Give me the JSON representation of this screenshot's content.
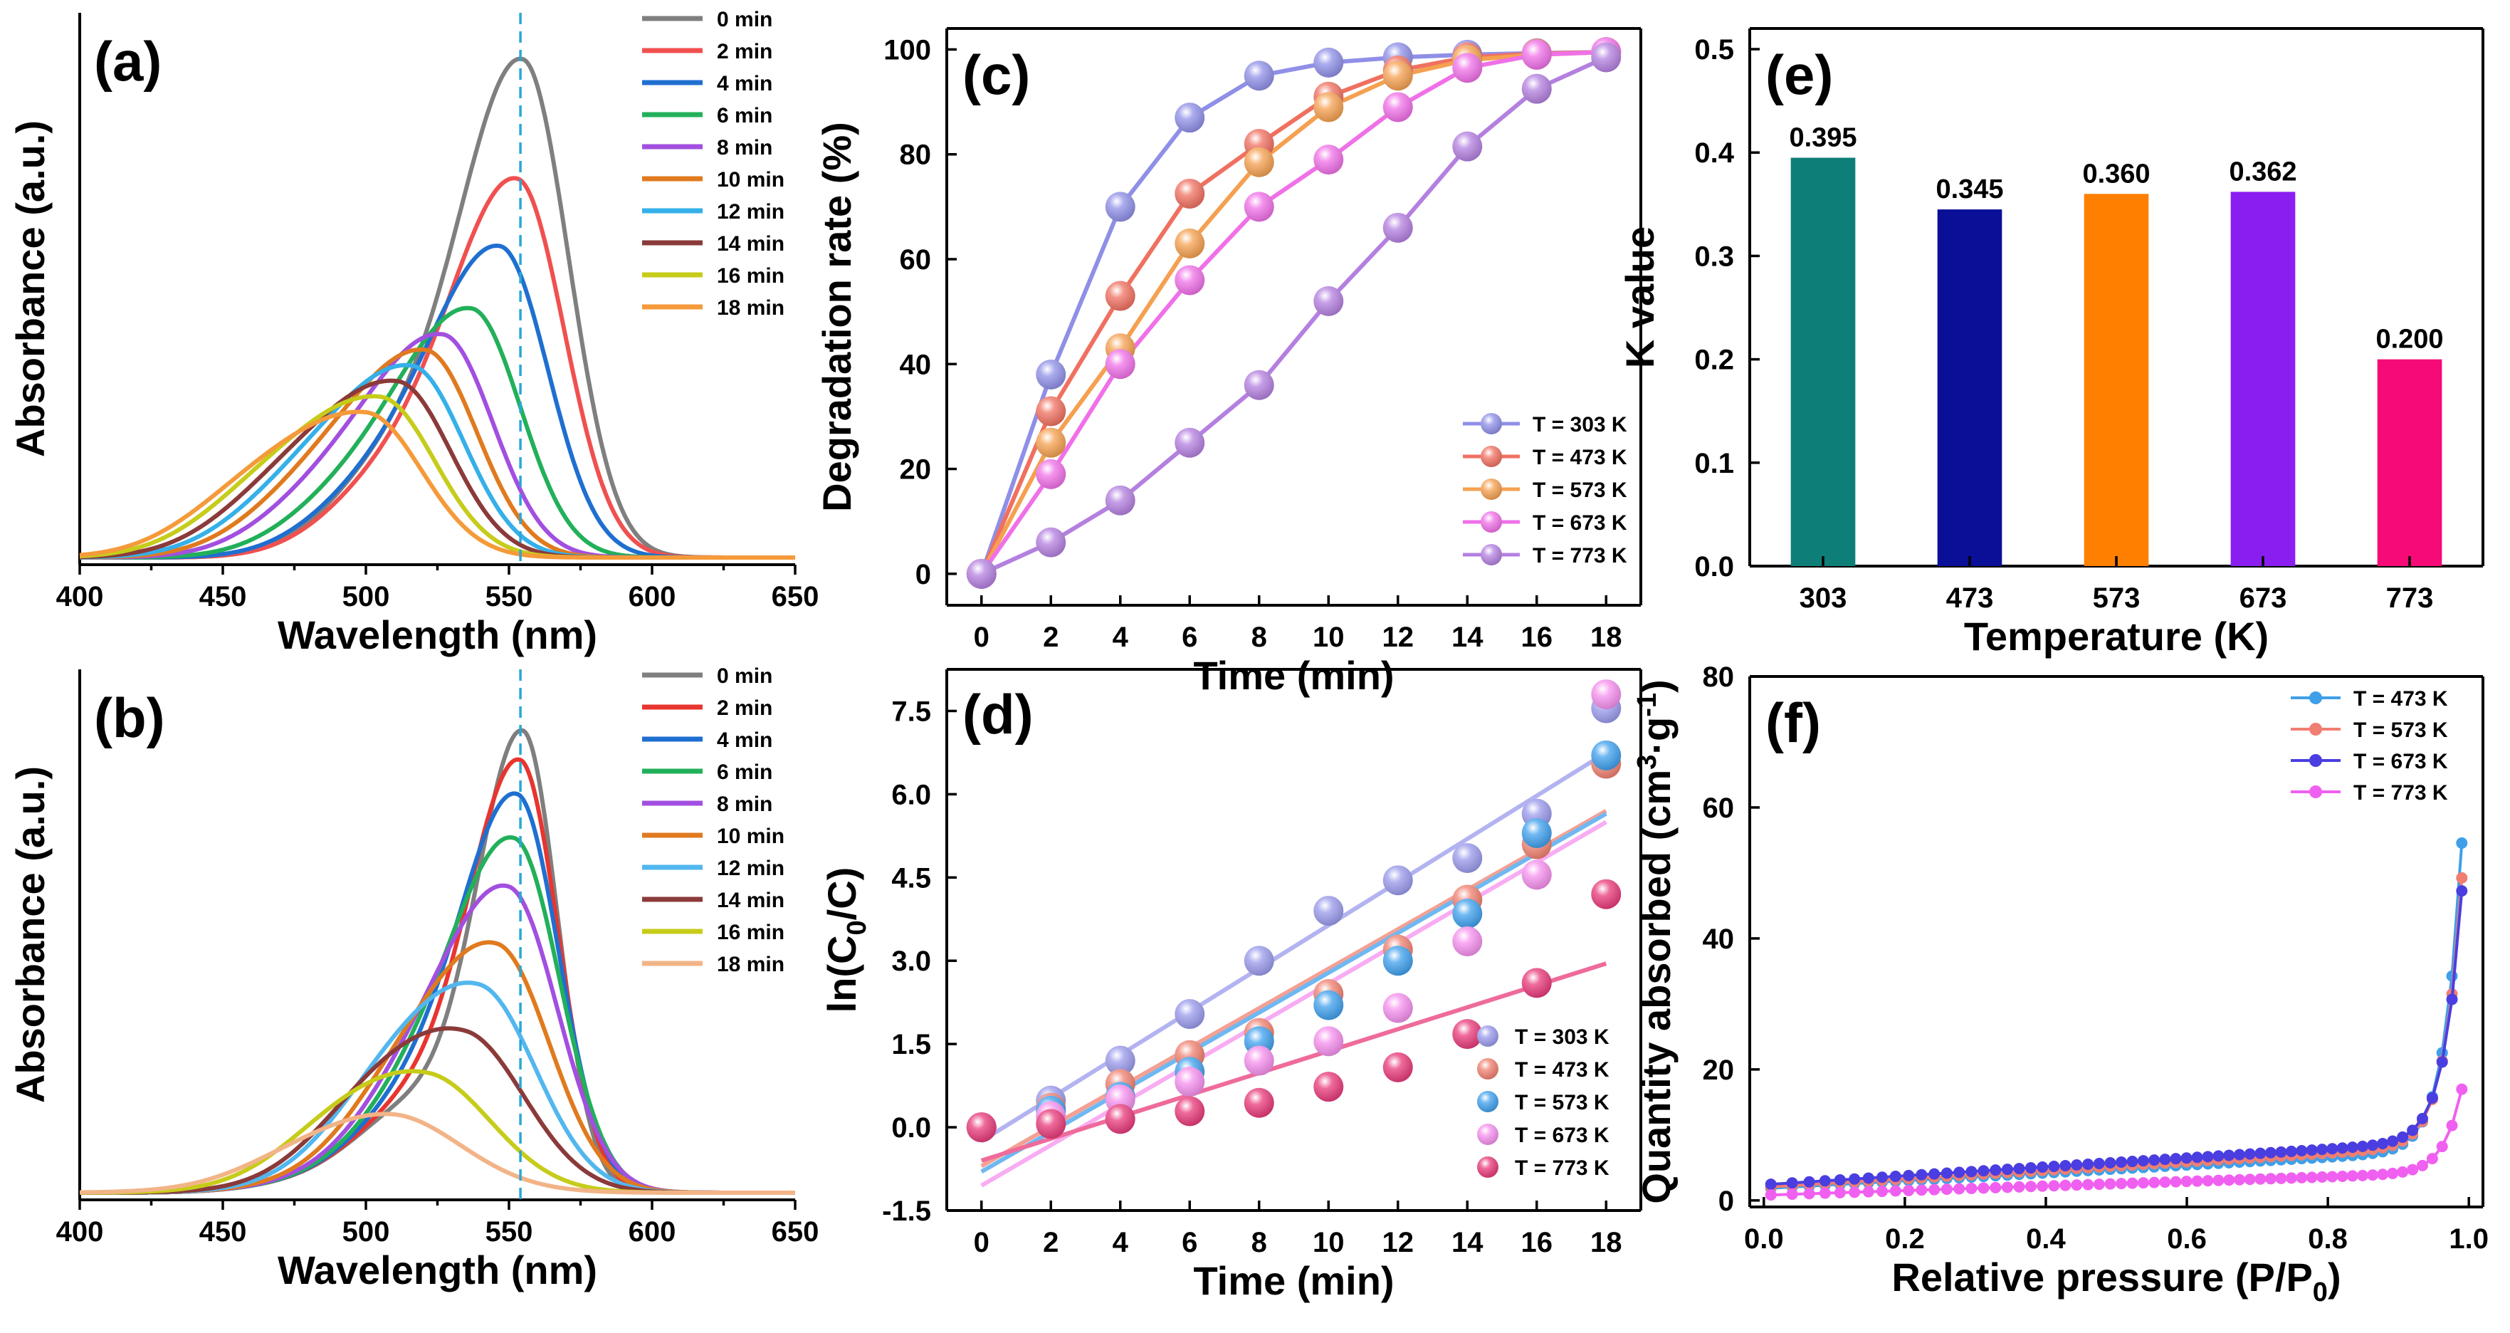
{
  "chart_data": [
    {
      "id": "a",
      "panel_label": "(a)",
      "type": "line",
      "xlabel": "Wavelength (nm)",
      "ylabel": "Absorbance (a.u.)",
      "xlim": [
        400,
        650
      ],
      "x_ticks": [
        "400",
        "450",
        "500",
        "550",
        "600",
        "650"
      ],
      "reference_line_x": 554,
      "legend_position": "top-right",
      "series": [
        {
          "name": "0 min",
          "color": "#7f7f7f",
          "peak_nm": 555,
          "peak_height": 0.96
        },
        {
          "name": "2 min",
          "color": "#f05050",
          "peak_nm": 553,
          "peak_height": 0.73
        },
        {
          "name": "4 min",
          "color": "#1f6fd0",
          "peak_nm": 547,
          "peak_height": 0.6
        },
        {
          "name": "6 min",
          "color": "#22b05a",
          "peak_nm": 537,
          "peak_height": 0.48
        },
        {
          "name": "8 min",
          "color": "#a24fe0",
          "peak_nm": 527,
          "peak_height": 0.43
        },
        {
          "name": "10 min",
          "color": "#e07a1f",
          "peak_nm": 521,
          "peak_height": 0.4
        },
        {
          "name": "12 min",
          "color": "#35b0e8",
          "peak_nm": 516,
          "peak_height": 0.37
        },
        {
          "name": "14 min",
          "color": "#8b3a3a",
          "peak_nm": 511,
          "peak_height": 0.34
        },
        {
          "name": "16 min",
          "color": "#c6cc1a",
          "peak_nm": 505,
          "peak_height": 0.31
        },
        {
          "name": "18 min",
          "color": "#f59a3a",
          "peak_nm": 500,
          "peak_height": 0.28
        }
      ]
    },
    {
      "id": "b",
      "panel_label": "(b)",
      "type": "line",
      "xlabel": "Wavelength (nm)",
      "ylabel": "Absorbance (a.u.)",
      "xlim": [
        400,
        650
      ],
      "x_ticks": [
        "400",
        "450",
        "500",
        "550",
        "600",
        "650"
      ],
      "reference_line_x": 554,
      "legend_position": "top-right",
      "series": [
        {
          "name": "0 min",
          "color": "#7f7f7f",
          "peak_nm": 555,
          "peak_height": 0.92
        },
        {
          "name": "2 min",
          "color": "#e8352f",
          "peak_nm": 554,
          "peak_height": 0.86
        },
        {
          "name": "4 min",
          "color": "#1f6fd0",
          "peak_nm": 553,
          "peak_height": 0.79
        },
        {
          "name": "6 min",
          "color": "#22b05a",
          "peak_nm": 552,
          "peak_height": 0.7
        },
        {
          "name": "8 min",
          "color": "#a24fe0",
          "peak_nm": 550,
          "peak_height": 0.6
        },
        {
          "name": "10 min",
          "color": "#e07a1f",
          "peak_nm": 546,
          "peak_height": 0.48
        },
        {
          "name": "12 min",
          "color": "#52b7ee",
          "peak_nm": 540,
          "peak_height": 0.39
        },
        {
          "name": "14 min",
          "color": "#8b3a3a",
          "peak_nm": 535,
          "peak_height": 0.29
        },
        {
          "name": "16 min",
          "color": "#c6cc1a",
          "peak_nm": 522,
          "peak_height": 0.19
        },
        {
          "name": "18 min",
          "color": "#f2b487",
          "peak_nm": 508,
          "peak_height": 0.1
        }
      ]
    },
    {
      "id": "c",
      "panel_label": "(c)",
      "type": "line",
      "xlabel": "Time (min)",
      "ylabel": "Degradation rate (%)",
      "xlim": [
        -1,
        19
      ],
      "ylim": [
        -6,
        104
      ],
      "x_ticks": [
        0,
        2,
        4,
        6,
        8,
        10,
        12,
        14,
        16,
        18
      ],
      "y_ticks": [
        0,
        20,
        40,
        60,
        80,
        100
      ],
      "x": [
        0,
        2,
        4,
        6,
        8,
        10,
        12,
        14,
        16,
        18
      ],
      "legend_position": "bottom-right",
      "series": [
        {
          "name": "T = 303 K",
          "color": "#8f8fe8",
          "values": [
            0,
            38,
            70,
            87,
            95,
            97.5,
            98.5,
            99,
            99.3,
            99.5
          ]
        },
        {
          "name": "T = 473 K",
          "color": "#f07060",
          "values": [
            0,
            31,
            53,
            72.5,
            82,
            91,
            96,
            98.5,
            99.2,
            99.5
          ]
        },
        {
          "name": "T = 573 K",
          "color": "#f5a050",
          "values": [
            0,
            25,
            43,
            63,
            78.5,
            89,
            95,
            98,
            99,
            99.5
          ]
        },
        {
          "name": "T = 673 K",
          "color": "#f070e8",
          "values": [
            0,
            19,
            40,
            56,
            70,
            79,
            89,
            96.5,
            99,
            99.5
          ]
        },
        {
          "name": "T = 773 K",
          "color": "#b480e0",
          "values": [
            0,
            6,
            14,
            25,
            36,
            52,
            66,
            81.5,
            92.5,
            98.5
          ]
        }
      ]
    },
    {
      "id": "d",
      "panel_label": "(d)",
      "type": "scatter",
      "xlabel": "Time (min)",
      "ylabel": "ln(C0/C)",
      "ylabel_parts": {
        "pre": "ln(C",
        "sub": "0",
        "post": "/C)"
      },
      "xlim": [
        -1,
        19
      ],
      "ylim": [
        -1.5,
        8.25
      ],
      "x_ticks": [
        0,
        2,
        4,
        6,
        8,
        10,
        12,
        14,
        16,
        18
      ],
      "y_ticks": [
        "-1.5",
        "0.0",
        "1.5",
        "3.0",
        "4.5",
        "6.0",
        "7.5"
      ],
      "x": [
        0,
        2,
        4,
        6,
        8,
        10,
        12,
        14,
        16,
        18
      ],
      "legend_position": "bottom-right",
      "series": [
        {
          "name": "T = 303 K",
          "color": "#9a9aec",
          "values": [
            0,
            0.48,
            1.2,
            2.04,
            3.0,
            3.9,
            4.45,
            4.85,
            5.65,
            7.55
          ],
          "fit": [
            -0.25,
            6.75
          ]
        },
        {
          "name": "T = 473 K",
          "color": "#f08070",
          "values": [
            0,
            0.35,
            0.78,
            1.3,
            1.7,
            2.4,
            3.2,
            4.1,
            5.1,
            6.55
          ],
          "fit": [
            -0.7,
            5.7
          ]
        },
        {
          "name": "T = 573 K",
          "color": "#3fa0ee",
          "values": [
            0,
            0.3,
            0.55,
            1.0,
            1.55,
            2.2,
            3.0,
            3.85,
            5.3,
            6.7
          ],
          "fit": [
            -0.8,
            5.65
          ]
        },
        {
          "name": "T = 673 K",
          "color": "#f590ee",
          "values": [
            0,
            0.2,
            0.5,
            0.82,
            1.2,
            1.55,
            2.15,
            3.35,
            4.55,
            7.8
          ],
          "fit": [
            -1.05,
            5.5
          ]
        },
        {
          "name": "T = 773 K",
          "color": "#e83a7a",
          "values": [
            0,
            0.06,
            0.15,
            0.29,
            0.44,
            0.73,
            1.08,
            1.68,
            2.6,
            4.2
          ],
          "fit": [
            -0.6,
            2.95
          ]
        }
      ]
    },
    {
      "id": "e",
      "panel_label": "(e)",
      "type": "bar",
      "xlabel": "Temperature (K)",
      "ylabel": "K value",
      "ylim": [
        0,
        0.52
      ],
      "y_ticks": [
        "0.0",
        "0.1",
        "0.2",
        "0.3",
        "0.4",
        "0.5"
      ],
      "categories": [
        "303",
        "473",
        "573",
        "673",
        "773"
      ],
      "values": [
        0.395,
        0.345,
        0.36,
        0.362,
        0.2
      ],
      "value_labels": [
        "0.395",
        "0.345",
        "0.360",
        "0.362",
        "0.200"
      ],
      "colors": [
        "#0e7f78",
        "#0a0f98",
        "#ff7f00",
        "#8a1ef0",
        "#f50a78"
      ]
    },
    {
      "id": "f",
      "panel_label": "(f)",
      "type": "line",
      "xlabel": "Relative pressure (P/P0)",
      "xlabel_parts": {
        "pre": "Relative pressure (P/P",
        "sub": "0",
        "post": ")"
      },
      "ylabel": "Quantity absorbed (cm3·g-1)",
      "ylabel_parts": {
        "pre": "Quantity absorbed (cm",
        "sup1": "3",
        "mid": "·g",
        "sup2": "-1",
        "post": ")"
      },
      "xlim": [
        -0.02,
        1.02
      ],
      "ylim": [
        -1,
        80
      ],
      "x_ticks": [
        "0.0",
        "0.2",
        "0.4",
        "0.6",
        "0.8",
        "1.0"
      ],
      "y_ticks": [
        0,
        20,
        40,
        60,
        80
      ],
      "legend_position": "top-right",
      "series": [
        {
          "name": "T = 473 K",
          "color": "#3f9fe8",
          "base": 1.8,
          "slope": 6.0,
          "rise": 70
        },
        {
          "name": "T = 573 K",
          "color": "#f07e72",
          "base": 2.0,
          "slope": 6.5,
          "rise": 61
        },
        {
          "name": "T = 673 K",
          "color": "#4a3ee0",
          "base": 2.4,
          "slope": 6.8,
          "rise": 57
        },
        {
          "name": "T = 773 K",
          "color": "#f060f0",
          "base": 0.8,
          "slope": 3.5,
          "rise": 19
        }
      ]
    }
  ]
}
